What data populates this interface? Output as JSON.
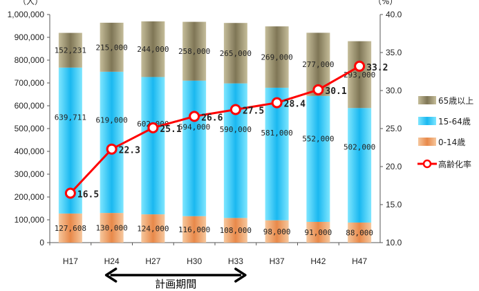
{
  "chart_data": {
    "type": "bar",
    "categories": [
      "H17",
      "H24",
      "H27",
      "H30",
      "H33",
      "H37",
      "H42",
      "H47"
    ],
    "series": [
      {
        "name": "0-14歳",
        "values": [
          127608,
          130000,
          124000,
          116000,
          108000,
          98000,
          91000,
          88000
        ],
        "labels": [
          "127,608",
          "130,000",
          "124,000",
          "116,000",
          "108,000",
          "98,000",
          "91,000",
          "88,000"
        ],
        "color": "#f2a46a"
      },
      {
        "name": "15-64歳",
        "values": [
          639711,
          619000,
          602000,
          594000,
          590000,
          581000,
          552000,
          502000
        ],
        "labels": [
          "639,711",
          "619,000",
          "602,000",
          "594,000",
          "590,000",
          "581,000",
          "552,000",
          "502,000"
        ],
        "color": "#33ccff"
      },
      {
        "name": "65歳以上",
        "values": [
          152231,
          215000,
          244000,
          258000,
          265000,
          269000,
          277000,
          293000
        ],
        "labels": [
          "152,231",
          "215,000",
          "244,000",
          "258,000",
          "265,000",
          "269,000",
          "277,000",
          "293,000"
        ],
        "color": "#a39a78"
      }
    ],
    "line_series": {
      "name": "高齢化率",
      "values": [
        16.5,
        22.3,
        25.1,
        26.6,
        27.5,
        28.4,
        30.1,
        33.2
      ],
      "labels": [
        "16.5",
        "22.3",
        "25.1",
        "26.6",
        "27.5",
        "28.4",
        "30.1",
        "33.2"
      ],
      "color": "#ff0000"
    },
    "y_left": {
      "unit": "（人）",
      "min": 0,
      "max": 1000000,
      "ticks": [
        "0",
        "100,000",
        "200,000",
        "300,000",
        "400,000",
        "500,000",
        "600,000",
        "700,000",
        "800,000",
        "900,000",
        "1,000,000"
      ]
    },
    "y_right": {
      "unit": "（%）",
      "min": 10,
      "max": 40,
      "ticks": [
        "10.0",
        "15.0",
        "20.0",
        "25.0",
        "30.0",
        "35.0",
        "40.0"
      ]
    },
    "legend": {
      "position": "right",
      "items": [
        "65歳以上",
        "15-64歳",
        "0-14歳",
        "高齢化率"
      ]
    },
    "annotation": {
      "text": "計画期間",
      "from": "H24",
      "to": "H33"
    },
    "grid": false
  }
}
